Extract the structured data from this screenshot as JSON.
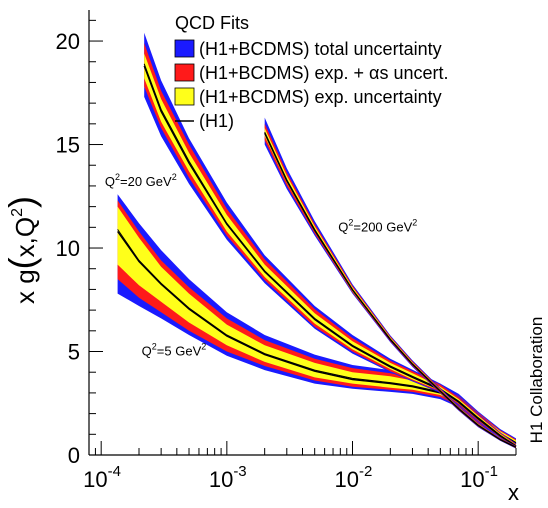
{
  "chart_data": {
    "type": "area",
    "xscale": "log",
    "xlim": [
      8e-05,
      0.2
    ],
    "ylim": [
      0,
      21.5
    ],
    "xlabel": "x",
    "ylabel": "x g(x,Q²)",
    "ylabel_parts": {
      "main": "x g",
      "open": "(",
      "arg": "x,Q",
      "exp": "2",
      "close": ")"
    },
    "x_ticks": [
      {
        "value": 0.0001,
        "base": "10",
        "exp": "-4"
      },
      {
        "value": 0.001,
        "base": "10",
        "exp": "-3"
      },
      {
        "value": 0.01,
        "base": "10",
        "exp": "-2"
      },
      {
        "value": 0.1,
        "base": "10",
        "exp": "-1"
      }
    ],
    "y_ticks": [
      0,
      5,
      10,
      15,
      20
    ],
    "y_tick_labels": [
      "0",
      "5",
      "10",
      "15",
      "20"
    ],
    "side_label": "H1 Collaboration",
    "legend": {
      "title": "QCD Fits",
      "placement": "top-right",
      "entries": [
        {
          "label": "(H1+BCDMS) total uncertainty",
          "color": "#1a1aff",
          "kind": "box"
        },
        {
          "label": "(H1+BCDMS) exp. + αs uncert.",
          "color": "#ff1a1a",
          "kind": "box"
        },
        {
          "label": "(H1+BCDMS) exp. uncertainty",
          "color": "#ffff1a",
          "kind": "box"
        },
        {
          "label": "(H1)",
          "color": "#000000",
          "kind": "line"
        }
      ]
    },
    "annotations": [
      {
        "label": "Q",
        "exp": "2",
        "rest": "=20 GeV",
        "rest_exp": "2",
        "x": 0.000107,
        "y": 13.0
      },
      {
        "label": "Q",
        "exp": "2",
        "rest": "=200 GeV",
        "rest_exp": "2",
        "x": 0.0077,
        "y": 10.8
      },
      {
        "label": "Q",
        "exp": "2",
        "rest": "=5 GeV",
        "rest_exp": "2",
        "x": 0.00021,
        "y": 4.8
      }
    ],
    "colors": {
      "total": "#1a1aff",
      "exp_alphas": "#ff1a1a",
      "exp": "#ffff1a",
      "h1": "#000000"
    },
    "series": [
      {
        "name": "Q²=5 GeV²",
        "x": [
          0.000135,
          0.0002,
          0.0003,
          0.0005,
          0.001,
          0.002,
          0.005,
          0.01,
          0.02,
          0.03,
          0.05,
          0.07,
          0.1,
          0.15,
          0.2
        ],
        "central": [
          10.9,
          9.4,
          8.3,
          7.1,
          5.8,
          4.9,
          4.1,
          3.7,
          3.5,
          3.35,
          3.05,
          2.6,
          1.8,
          1.05,
          0.6
        ],
        "exp_lo": [
          9.2,
          8.2,
          7.4,
          6.4,
          5.3,
          4.5,
          3.75,
          3.45,
          3.25,
          3.15,
          2.9,
          2.45,
          1.65,
          0.95,
          0.5
        ],
        "exp_hi": [
          12.0,
          10.5,
          9.1,
          7.8,
          6.3,
          5.3,
          4.45,
          4.0,
          3.8,
          3.6,
          3.25,
          2.75,
          1.95,
          1.15,
          0.7
        ],
        "ea_lo": [
          8.5,
          7.6,
          6.9,
          6.0,
          5.0,
          4.3,
          3.6,
          3.3,
          3.15,
          3.05,
          2.8,
          2.35,
          1.55,
          0.9,
          0.45
        ],
        "ea_hi": [
          12.3,
          10.8,
          9.4,
          8.1,
          6.6,
          5.55,
          4.65,
          4.2,
          3.95,
          3.75,
          3.35,
          2.85,
          2.05,
          1.2,
          0.75
        ],
        "tot_lo": [
          7.8,
          7.2,
          6.6,
          5.8,
          4.8,
          4.1,
          3.45,
          3.2,
          3.05,
          2.95,
          2.7,
          2.3,
          1.5,
          0.85,
          0.4
        ],
        "tot_hi": [
          12.6,
          11.2,
          9.9,
          8.5,
          6.9,
          5.8,
          4.85,
          4.35,
          4.1,
          3.85,
          3.45,
          2.95,
          2.1,
          1.25,
          0.8
        ],
        "h1": [
          10.8,
          9.35,
          8.25,
          7.05,
          5.75,
          4.85,
          4.05,
          3.65,
          3.45,
          3.3,
          3.0,
          2.55,
          1.75,
          1.0,
          0.55
        ]
      },
      {
        "name": "Q²=20 GeV²",
        "x": [
          0.00022,
          0.0003,
          0.0005,
          0.001,
          0.002,
          0.005,
          0.01,
          0.02,
          0.03,
          0.05,
          0.07,
          0.1,
          0.15,
          0.2
        ],
        "central": [
          18.9,
          16.7,
          14.2,
          11.2,
          8.9,
          6.6,
          5.3,
          4.3,
          3.8,
          3.2,
          2.6,
          1.8,
          0.95,
          0.45
        ],
        "exp_lo": [
          18.2,
          16.1,
          13.7,
          10.8,
          8.6,
          6.35,
          5.1,
          4.15,
          3.65,
          3.1,
          2.5,
          1.7,
          0.88,
          0.4
        ],
        "exp_hi": [
          19.4,
          17.2,
          14.6,
          11.6,
          9.2,
          6.85,
          5.5,
          4.45,
          3.95,
          3.3,
          2.7,
          1.9,
          1.02,
          0.5
        ],
        "ea_lo": [
          17.8,
          15.8,
          13.4,
          10.6,
          8.45,
          6.2,
          5.0,
          4.05,
          3.6,
          3.05,
          2.45,
          1.65,
          0.85,
          0.37
        ],
        "ea_hi": [
          19.9,
          17.6,
          15.0,
          11.9,
          9.45,
          7.05,
          5.65,
          4.55,
          4.05,
          3.4,
          2.78,
          1.95,
          1.07,
          0.53
        ],
        "tot_lo": [
          17.3,
          15.4,
          13.1,
          10.4,
          8.3,
          6.1,
          4.9,
          4.0,
          3.55,
          3.0,
          2.4,
          1.6,
          0.82,
          0.35
        ],
        "tot_hi": [
          20.4,
          18.1,
          15.3,
          12.2,
          9.65,
          7.2,
          5.8,
          4.65,
          4.12,
          3.45,
          2.82,
          2.0,
          1.1,
          0.56
        ],
        "h1": [
          18.8,
          16.6,
          14.1,
          11.15,
          8.85,
          6.55,
          5.25,
          4.25,
          3.75,
          3.15,
          2.55,
          1.75,
          0.92,
          0.43
        ]
      },
      {
        "name": "Q²=200 GeV²",
        "x": [
          0.002,
          0.003,
          0.005,
          0.01,
          0.02,
          0.03,
          0.05,
          0.07,
          0.1,
          0.15,
          0.2
        ],
        "central": [
          15.6,
          13.3,
          10.9,
          8.0,
          5.6,
          4.4,
          3.1,
          2.25,
          1.45,
          0.75,
          0.38
        ],
        "exp_lo": [
          15.4,
          13.15,
          10.8,
          7.9,
          5.55,
          4.35,
          3.05,
          2.2,
          1.4,
          0.72,
          0.35
        ],
        "exp_hi": [
          15.8,
          13.5,
          11.05,
          8.1,
          5.68,
          4.47,
          3.15,
          2.3,
          1.5,
          0.78,
          0.41
        ],
        "ea_lo": [
          15.2,
          13.0,
          10.7,
          7.85,
          5.5,
          4.3,
          3.0,
          2.17,
          1.37,
          0.7,
          0.33
        ],
        "ea_hi": [
          16.0,
          13.65,
          11.15,
          8.18,
          5.73,
          4.52,
          3.2,
          2.33,
          1.53,
          0.8,
          0.43
        ],
        "tot_lo": [
          15.0,
          12.85,
          10.6,
          7.8,
          5.45,
          4.25,
          2.97,
          2.14,
          1.34,
          0.68,
          0.31
        ],
        "tot_hi": [
          16.3,
          13.85,
          11.3,
          8.25,
          5.78,
          4.57,
          3.24,
          2.37,
          1.56,
          0.82,
          0.45
        ],
        "h1": [
          15.55,
          13.25,
          10.85,
          7.97,
          5.58,
          4.38,
          3.08,
          2.23,
          1.43,
          0.74,
          0.37
        ]
      }
    ]
  }
}
